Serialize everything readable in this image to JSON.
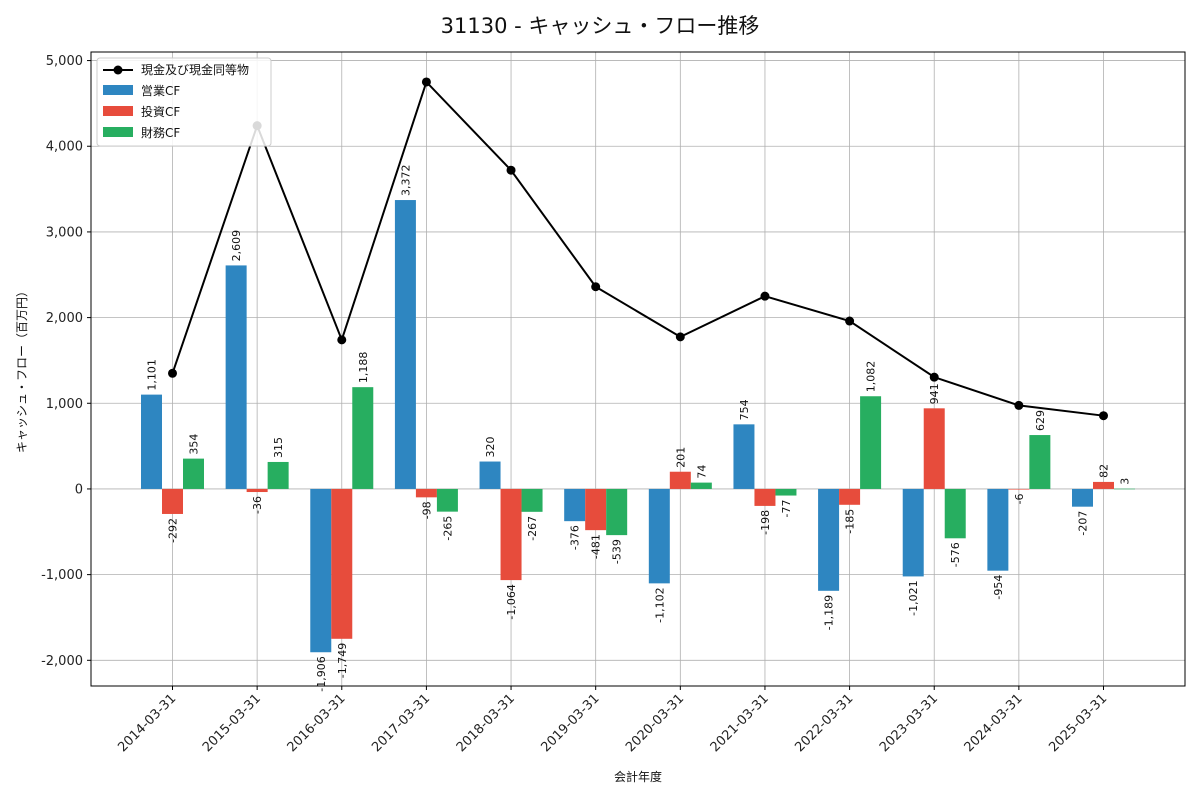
{
  "chart_data": {
    "type": "bar",
    "title": "31130 - キャッシュ・フロー推移",
    "xlabel": "会計年度",
    "ylabel": "キャッシュ・フロー（百万円）",
    "ylim": [
      -2300,
      5100
    ],
    "yticks": [
      -2000,
      -1000,
      0,
      1000,
      2000,
      3000,
      4000,
      5000
    ],
    "ytick_labels": [
      "-2,000",
      "-1,000",
      "0",
      "1,000",
      "2,000",
      "3,000",
      "4,000",
      "5,000"
    ],
    "grid": true,
    "legend_position": "top-left",
    "categories": [
      "2014-03-31",
      "2015-03-31",
      "2016-03-31",
      "2017-03-31",
      "2018-03-31",
      "2019-03-31",
      "2020-03-31",
      "2021-03-31",
      "2022-03-31",
      "2023-03-31",
      "2024-03-31",
      "2025-03-31"
    ],
    "series": [
      {
        "name": "営業CF",
        "kind": "bar",
        "color": "#2e86c1",
        "values": [
          1101,
          2609,
          -1906,
          3372,
          320,
          -376,
          -1102,
          754,
          -1189,
          -1021,
          -954,
          -207
        ],
        "labels": [
          "1,101",
          "2,609",
          "-1,906",
          "3,372",
          "320",
          "-376",
          "-1,102",
          "754",
          "-1,189",
          "-1,021",
          "-954",
          "-207"
        ]
      },
      {
        "name": "投資CF",
        "kind": "bar",
        "color": "#e74c3c",
        "values": [
          -292,
          -36,
          -1749,
          -98,
          -1064,
          -481,
          201,
          -198,
          -185,
          941,
          -6,
          82
        ],
        "labels": [
          "-292",
          "-36",
          "-1,749",
          "-98",
          "-1,064",
          "-481",
          "201",
          "-198",
          "-185",
          "941",
          "-6",
          "82"
        ]
      },
      {
        "name": "財務CF",
        "kind": "bar",
        "color": "#27ae60",
        "values": [
          354,
          315,
          1188,
          -265,
          -267,
          -539,
          74,
          -77,
          1082,
          -576,
          629,
          3
        ],
        "labels": [
          "354",
          "315",
          "1,188",
          "-265",
          "-267",
          "-539",
          "74",
          "-77",
          "1,082",
          "-576",
          "629",
          "3"
        ]
      },
      {
        "name": "現金及び現金同等物",
        "kind": "line",
        "color": "#000000",
        "values": [
          1350,
          4240,
          1740,
          4750,
          3720,
          2360,
          1775,
          2250,
          1960,
          1305,
          975,
          855
        ]
      }
    ]
  }
}
